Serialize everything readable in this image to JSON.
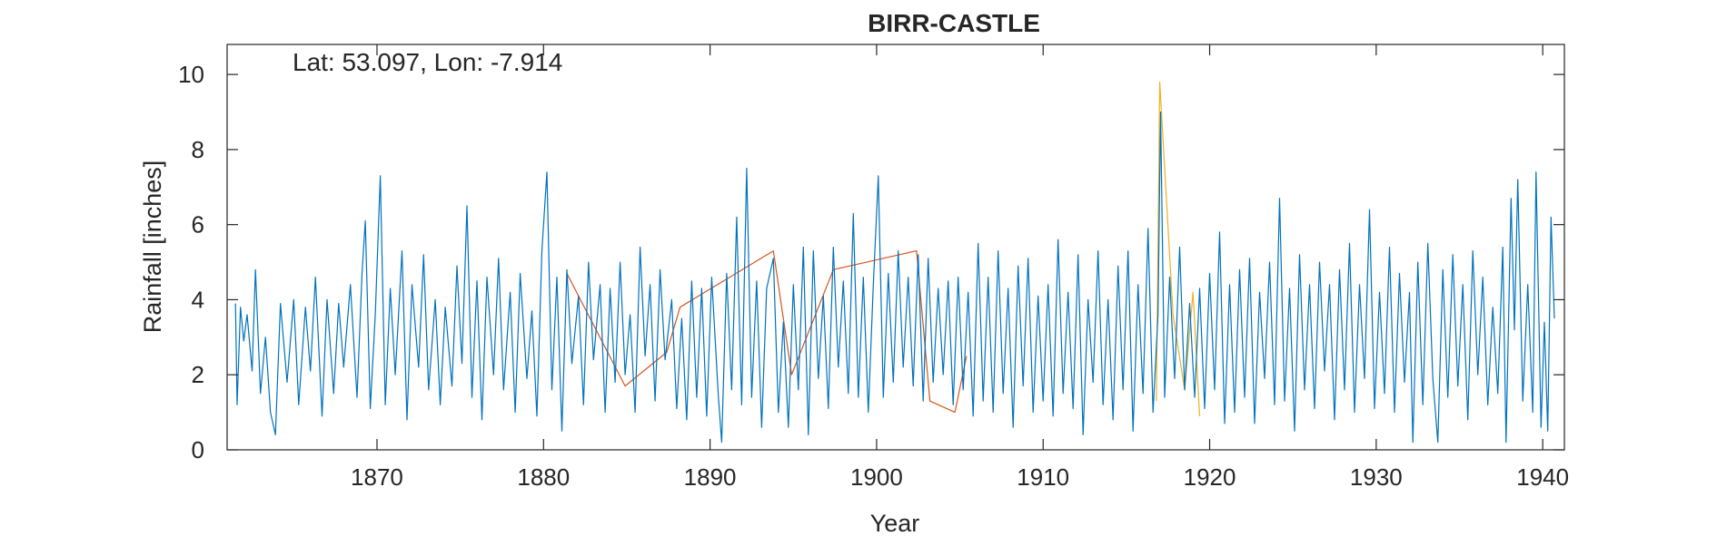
{
  "chart_data": {
    "type": "line",
    "title": "BIRR-CASTLE",
    "xlabel": "Year",
    "ylabel": "Rainfall [inches]",
    "annotation": "Lat: 53.097, Lon: -7.914",
    "xlim": [
      1861.0,
      1941.3
    ],
    "ylim": [
      0,
      10.8
    ],
    "xticks": [
      1870,
      1880,
      1890,
      1900,
      1910,
      1920,
      1930,
      1940
    ],
    "yticks": [
      0,
      2,
      4,
      6,
      8,
      10
    ],
    "grid": false,
    "series": [
      {
        "color": "#D95319",
        "style": "occasional deviations",
        "points": [
          [
            1881.4,
            4.7
          ],
          [
            1884.9,
            1.7
          ],
          [
            1887.4,
            2.6
          ],
          [
            1888.2,
            3.8
          ],
          [
            1893.8,
            5.3
          ],
          [
            1894.9,
            2.0
          ],
          [
            1897.4,
            4.8
          ],
          [
            1902.4,
            5.3
          ],
          [
            1903.2,
            1.3
          ],
          [
            1904.7,
            1.0
          ],
          [
            1905.4,
            2.5
          ]
        ]
      },
      {
        "color": "#EDB120",
        "style": "occasional deviations",
        "points": [
          [
            1916.8,
            1.3
          ],
          [
            1917.0,
            9.8
          ],
          [
            1917.8,
            3.6
          ],
          [
            1918.5,
            1.6
          ],
          [
            1919.0,
            4.2
          ],
          [
            1919.4,
            0.9
          ]
        ]
      },
      {
        "color": "#0072BD",
        "style": "monthly series",
        "points": [
          [
            1861.5,
            3.9
          ],
          [
            1861.6,
            1.2
          ],
          [
            1861.8,
            3.8
          ],
          [
            1862.0,
            2.9
          ],
          [
            1862.2,
            3.6
          ],
          [
            1862.5,
            2.1
          ],
          [
            1862.7,
            4.8
          ],
          [
            1863.0,
            1.5
          ],
          [
            1863.3,
            3.0
          ],
          [
            1863.6,
            1.0
          ],
          [
            1863.9,
            0.4
          ],
          [
            1864.2,
            3.9
          ],
          [
            1864.6,
            1.8
          ],
          [
            1865.0,
            4.0
          ],
          [
            1865.3,
            1.2
          ],
          [
            1865.7,
            3.8
          ],
          [
            1866.0,
            2.1
          ],
          [
            1866.3,
            4.6
          ],
          [
            1866.7,
            0.9
          ],
          [
            1867.0,
            4.0
          ],
          [
            1867.4,
            1.5
          ],
          [
            1867.7,
            3.9
          ],
          [
            1868.0,
            2.2
          ],
          [
            1868.4,
            4.4
          ],
          [
            1868.8,
            1.4
          ],
          [
            1869.1,
            4.7
          ],
          [
            1869.3,
            6.1
          ],
          [
            1869.6,
            1.1
          ],
          [
            1869.9,
            3.6
          ],
          [
            1870.2,
            7.3
          ],
          [
            1870.5,
            1.2
          ],
          [
            1870.8,
            4.3
          ],
          [
            1871.1,
            2.0
          ],
          [
            1871.5,
            5.3
          ],
          [
            1871.8,
            0.8
          ],
          [
            1872.1,
            4.4
          ],
          [
            1872.5,
            2.2
          ],
          [
            1872.8,
            5.2
          ],
          [
            1873.1,
            1.6
          ],
          [
            1873.5,
            4.0
          ],
          [
            1873.8,
            1.2
          ],
          [
            1874.1,
            3.8
          ],
          [
            1874.5,
            1.7
          ],
          [
            1874.8,
            4.9
          ],
          [
            1875.1,
            2.3
          ],
          [
            1875.4,
            6.5
          ],
          [
            1875.7,
            1.4
          ],
          [
            1876.0,
            4.5
          ],
          [
            1876.3,
            0.8
          ],
          [
            1876.6,
            4.6
          ],
          [
            1877.0,
            2.0
          ],
          [
            1877.3,
            5.1
          ],
          [
            1877.6,
            1.6
          ],
          [
            1878.0,
            4.2
          ],
          [
            1878.3,
            1.0
          ],
          [
            1878.6,
            4.7
          ],
          [
            1879.0,
            1.9
          ],
          [
            1879.3,
            3.7
          ],
          [
            1879.6,
            0.9
          ],
          [
            1879.9,
            5.3
          ],
          [
            1880.2,
            7.4
          ],
          [
            1880.5,
            1.6
          ],
          [
            1880.8,
            4.6
          ],
          [
            1881.1,
            0.5
          ],
          [
            1881.4,
            4.8
          ],
          [
            1881.7,
            2.3
          ],
          [
            1882.1,
            4.1
          ],
          [
            1882.4,
            1.2
          ],
          [
            1882.7,
            5.0
          ],
          [
            1883.0,
            2.4
          ],
          [
            1883.4,
            4.4
          ],
          [
            1883.7,
            1.0
          ],
          [
            1884.0,
            4.3
          ],
          [
            1884.3,
            1.8
          ],
          [
            1884.6,
            5.0
          ],
          [
            1884.9,
            2.0
          ],
          [
            1885.2,
            3.6
          ],
          [
            1885.5,
            1.0
          ],
          [
            1885.8,
            5.4
          ],
          [
            1886.1,
            2.5
          ],
          [
            1886.4,
            4.4
          ],
          [
            1886.7,
            1.3
          ],
          [
            1887.0,
            4.8
          ],
          [
            1887.3,
            2.4
          ],
          [
            1887.7,
            4.0
          ],
          [
            1888.0,
            1.1
          ],
          [
            1888.3,
            3.5
          ],
          [
            1888.6,
            0.8
          ],
          [
            1888.9,
            4.5
          ],
          [
            1889.2,
            1.4
          ],
          [
            1889.5,
            4.3
          ],
          [
            1889.8,
            0.9
          ],
          [
            1890.1,
            4.6
          ],
          [
            1890.5,
            1.4
          ],
          [
            1890.7,
            0.2
          ],
          [
            1891.0,
            4.7
          ],
          [
            1891.3,
            1.6
          ],
          [
            1891.6,
            6.2
          ],
          [
            1891.9,
            1.2
          ],
          [
            1892.2,
            7.5
          ],
          [
            1892.5,
            1.4
          ],
          [
            1892.8,
            4.5
          ],
          [
            1893.1,
            0.6
          ],
          [
            1893.4,
            4.3
          ],
          [
            1893.8,
            5.1
          ],
          [
            1894.1,
            1.0
          ],
          [
            1894.4,
            3.4
          ],
          [
            1894.7,
            0.6
          ],
          [
            1895.0,
            4.4
          ],
          [
            1895.3,
            1.6
          ],
          [
            1895.6,
            5.4
          ],
          [
            1895.9,
            0.4
          ],
          [
            1896.2,
            5.3
          ],
          [
            1896.5,
            1.9
          ],
          [
            1896.8,
            4.1
          ],
          [
            1897.1,
            1.1
          ],
          [
            1897.4,
            5.4
          ],
          [
            1897.7,
            2.2
          ],
          [
            1898.0,
            4.5
          ],
          [
            1898.3,
            1.5
          ],
          [
            1898.6,
            6.3
          ],
          [
            1898.9,
            1.4
          ],
          [
            1899.2,
            4.6
          ],
          [
            1899.5,
            1.0
          ],
          [
            1899.8,
            4.4
          ],
          [
            1900.1,
            7.3
          ],
          [
            1900.4,
            1.4
          ],
          [
            1900.7,
            4.7
          ],
          [
            1901.0,
            1.8
          ],
          [
            1901.3,
            5.3
          ],
          [
            1901.6,
            2.2
          ],
          [
            1901.9,
            4.6
          ],
          [
            1902.2,
            1.7
          ],
          [
            1902.5,
            5.2
          ],
          [
            1902.8,
            1.3
          ],
          [
            1903.1,
            5.1
          ],
          [
            1903.4,
            1.8
          ],
          [
            1903.7,
            4.3
          ],
          [
            1904.0,
            2.0
          ],
          [
            1904.3,
            4.5
          ],
          [
            1904.6,
            1.2
          ],
          [
            1904.9,
            4.6
          ],
          [
            1905.2,
            1.6
          ],
          [
            1905.5,
            4.2
          ],
          [
            1905.8,
            0.9
          ],
          [
            1906.1,
            5.5
          ],
          [
            1906.4,
            1.3
          ],
          [
            1906.7,
            4.6
          ],
          [
            1907.0,
            1.0
          ],
          [
            1907.3,
            5.3
          ],
          [
            1907.6,
            1.5
          ],
          [
            1907.9,
            4.3
          ],
          [
            1908.2,
            0.6
          ],
          [
            1908.5,
            4.9
          ],
          [
            1908.8,
            1.7
          ],
          [
            1909.1,
            5.1
          ],
          [
            1909.4,
            1.0
          ],
          [
            1909.7,
            4.1
          ],
          [
            1910.0,
            1.3
          ],
          [
            1910.3,
            4.4
          ],
          [
            1910.6,
            0.9
          ],
          [
            1910.9,
            5.6
          ],
          [
            1911.2,
            1.5
          ],
          [
            1911.5,
            4.2
          ],
          [
            1911.8,
            1.1
          ],
          [
            1912.1,
            5.2
          ],
          [
            1912.4,
            0.4
          ],
          [
            1912.7,
            4.0
          ],
          [
            1913.0,
            1.8
          ],
          [
            1913.3,
            5.3
          ],
          [
            1913.6,
            1.2
          ],
          [
            1913.9,
            4.0
          ],
          [
            1914.2,
            0.8
          ],
          [
            1914.5,
            4.9
          ],
          [
            1914.8,
            1.6
          ],
          [
            1915.1,
            5.3
          ],
          [
            1915.4,
            0.5
          ],
          [
            1915.7,
            4.4
          ],
          [
            1916.0,
            1.5
          ],
          [
            1916.3,
            5.9
          ],
          [
            1916.6,
            1.0
          ],
          [
            1916.9,
            3.6
          ],
          [
            1917.05,
            9.0
          ],
          [
            1917.3,
            1.4
          ],
          [
            1917.6,
            4.6
          ],
          [
            1917.9,
            1.9
          ],
          [
            1918.2,
            5.4
          ],
          [
            1918.5,
            1.6
          ],
          [
            1918.8,
            3.9
          ],
          [
            1919.1,
            1.4
          ],
          [
            1919.4,
            4.3
          ],
          [
            1919.7,
            1.1
          ],
          [
            1920.0,
            4.7
          ],
          [
            1920.3,
            1.6
          ],
          [
            1920.6,
            5.8
          ],
          [
            1920.9,
            0.7
          ],
          [
            1921.2,
            4.4
          ],
          [
            1921.5,
            1.0
          ],
          [
            1921.8,
            4.8
          ],
          [
            1922.1,
            1.4
          ],
          [
            1922.4,
            5.1
          ],
          [
            1922.7,
            0.7
          ],
          [
            1923.0,
            4.2
          ],
          [
            1923.3,
            1.9
          ],
          [
            1923.6,
            5.0
          ],
          [
            1923.9,
            1.2
          ],
          [
            1924.2,
            6.7
          ],
          [
            1924.5,
            1.3
          ],
          [
            1924.8,
            4.3
          ],
          [
            1925.1,
            0.5
          ],
          [
            1925.4,
            5.2
          ],
          [
            1925.7,
            1.6
          ],
          [
            1926.0,
            4.4
          ],
          [
            1926.3,
            1.1
          ],
          [
            1926.6,
            5.0
          ],
          [
            1926.9,
            2.1
          ],
          [
            1927.2,
            4.4
          ],
          [
            1927.5,
            0.8
          ],
          [
            1927.8,
            4.8
          ],
          [
            1928.1,
            1.6
          ],
          [
            1928.4,
            5.5
          ],
          [
            1928.7,
            1.0
          ],
          [
            1929.0,
            4.4
          ],
          [
            1929.3,
            1.9
          ],
          [
            1929.6,
            6.4
          ],
          [
            1929.9,
            1.1
          ],
          [
            1930.2,
            4.2
          ],
          [
            1930.5,
            1.5
          ],
          [
            1930.8,
            5.4
          ],
          [
            1931.1,
            1.0
          ],
          [
            1931.4,
            4.7
          ],
          [
            1931.7,
            1.8
          ],
          [
            1932.0,
            4.2
          ],
          [
            1932.2,
            0.2
          ],
          [
            1932.5,
            5.0
          ],
          [
            1932.8,
            1.2
          ],
          [
            1933.1,
            5.5
          ],
          [
            1933.4,
            1.9
          ],
          [
            1933.7,
            0.2
          ],
          [
            1934.0,
            4.8
          ],
          [
            1934.3,
            1.4
          ],
          [
            1934.6,
            5.2
          ],
          [
            1934.9,
            1.7
          ],
          [
            1935.2,
            4.4
          ],
          [
            1935.5,
            0.8
          ],
          [
            1935.8,
            5.3
          ],
          [
            1936.1,
            2.0
          ],
          [
            1936.4,
            4.6
          ],
          [
            1936.7,
            1.2
          ],
          [
            1937.0,
            3.8
          ],
          [
            1937.3,
            1.5
          ],
          [
            1937.6,
            5.4
          ],
          [
            1937.8,
            0.2
          ],
          [
            1938.1,
            6.7
          ],
          [
            1938.3,
            3.2
          ],
          [
            1938.5,
            7.2
          ],
          [
            1938.8,
            1.3
          ],
          [
            1939.1,
            4.4
          ],
          [
            1939.4,
            1.0
          ],
          [
            1939.6,
            7.4
          ],
          [
            1939.9,
            0.6
          ],
          [
            1940.1,
            3.4
          ],
          [
            1940.3,
            0.5
          ],
          [
            1940.5,
            6.2
          ],
          [
            1940.7,
            3.5
          ]
        ]
      }
    ]
  }
}
